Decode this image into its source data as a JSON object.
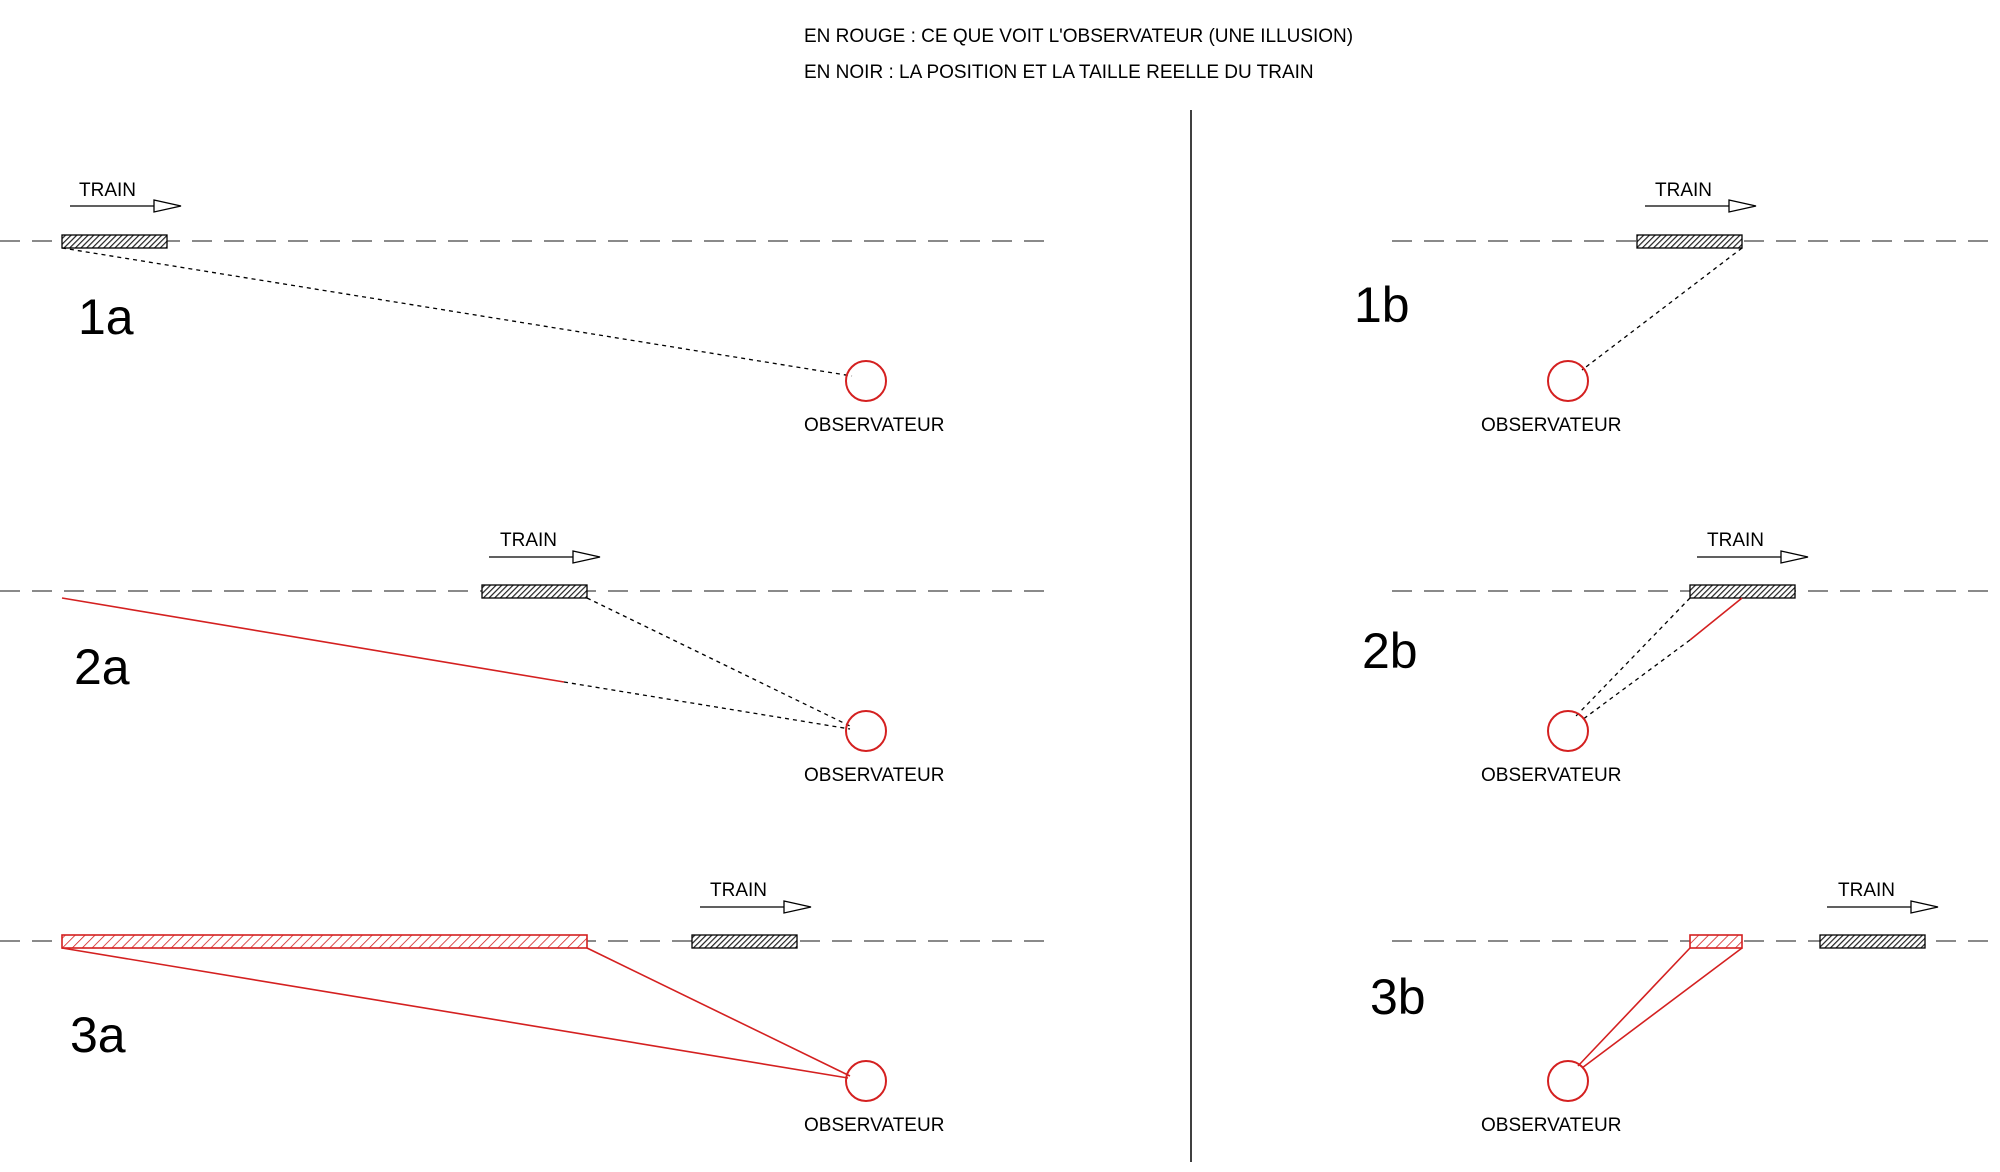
{
  "header": {
    "line1": "EN ROUGE : CE QUE VOIT L'OBSERVATEUR (UNE ILLUSION)",
    "line2": "EN NOIR : LA POSITION ET LA TAILLE REELLE DU TRAIN"
  },
  "colors": {
    "illusion": "#d42020",
    "real": "#000000",
    "hatch_real": "#555555"
  },
  "panels": [
    {
      "id": "1a",
      "label": "1a",
      "train_label": "TRAIN",
      "observer_label": "OBSERVATEUR"
    },
    {
      "id": "2a",
      "label": "2a",
      "train_label": "TRAIN",
      "observer_label": "OBSERVATEUR"
    },
    {
      "id": "3a",
      "label": "3a",
      "train_label": "TRAIN",
      "observer_label": "OBSERVATEUR"
    },
    {
      "id": "1b",
      "label": "1b",
      "train_label": "TRAIN",
      "observer_label": "OBSERVATEUR"
    },
    {
      "id": "2b",
      "label": "2b",
      "train_label": "TRAIN",
      "observer_label": "OBSERVATEUR"
    },
    {
      "id": "3b",
      "label": "3b",
      "train_label": "TRAIN",
      "observer_label": "OBSERVATEUR"
    }
  ]
}
